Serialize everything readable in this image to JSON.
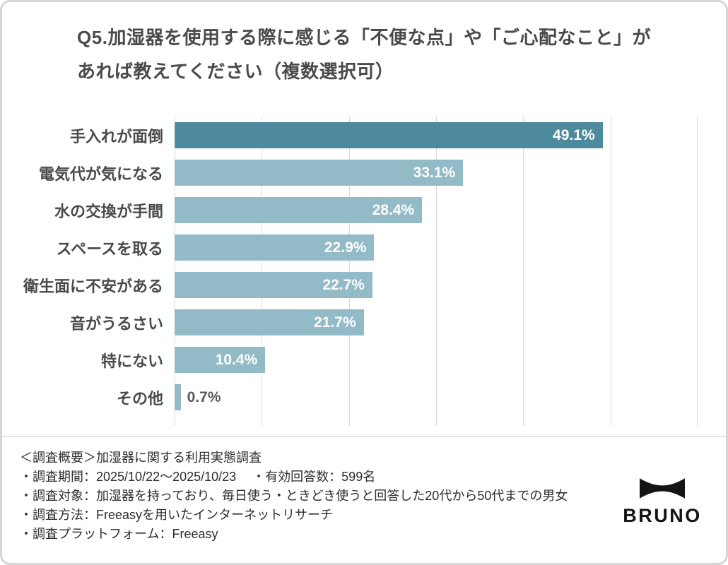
{
  "title": {
    "line1": "Q5.加湿器を使用する際に感じる「不便な点」や「ご心配なこと」が",
    "line2": "あれば教えてください（複数選択可）"
  },
  "chart_data": {
    "type": "bar",
    "orientation": "horizontal",
    "title": "Q5.加湿器を使用する際に感じる「不便な点」や「ご心配なこと」があれば教えてください（複数選択可）",
    "categories": [
      "手入れが面倒",
      "電気代が気になる",
      "水の交換が手間",
      "スペースを取る",
      "衛生面に不安がある",
      "音がうるさい",
      "特にない",
      "その他"
    ],
    "values": [
      49.1,
      33.1,
      28.4,
      22.9,
      22.7,
      21.7,
      10.4,
      0.7
    ],
    "value_labels": [
      "49.1%",
      "33.1%",
      "28.4%",
      "22.9%",
      "22.7%",
      "21.7%",
      "10.4%",
      "0.7%"
    ],
    "xlim": [
      0,
      60
    ],
    "gridline_interval": 10,
    "grid": true,
    "legend": "none",
    "highlight_index": 0,
    "bar_colors": {
      "highlight": "#4e8a9d",
      "default": "#93bac7"
    },
    "value_label_color_inside": "#ffffff",
    "value_label_color_outside": "#595959",
    "gridline_color": "#d9d9d9"
  },
  "footer": {
    "lines": [
      "＜調査概要＞加湿器に関する利用実態調査",
      "・調査期間：2025/10/22～2025/10/23　 ・有効回答数：599名",
      "・調査対象：加湿器を持っており、毎日使う・ときどき使うと回答した20代から50代までの男女",
      "・調査方法：Freeasyを用いたインターネットリサーチ",
      "・調査プラットフォーム：Freeasy"
    ]
  },
  "brand": {
    "logo_text": "BRUNO",
    "logo_icon": "bowtie-icon",
    "logo_color": "#141414"
  }
}
